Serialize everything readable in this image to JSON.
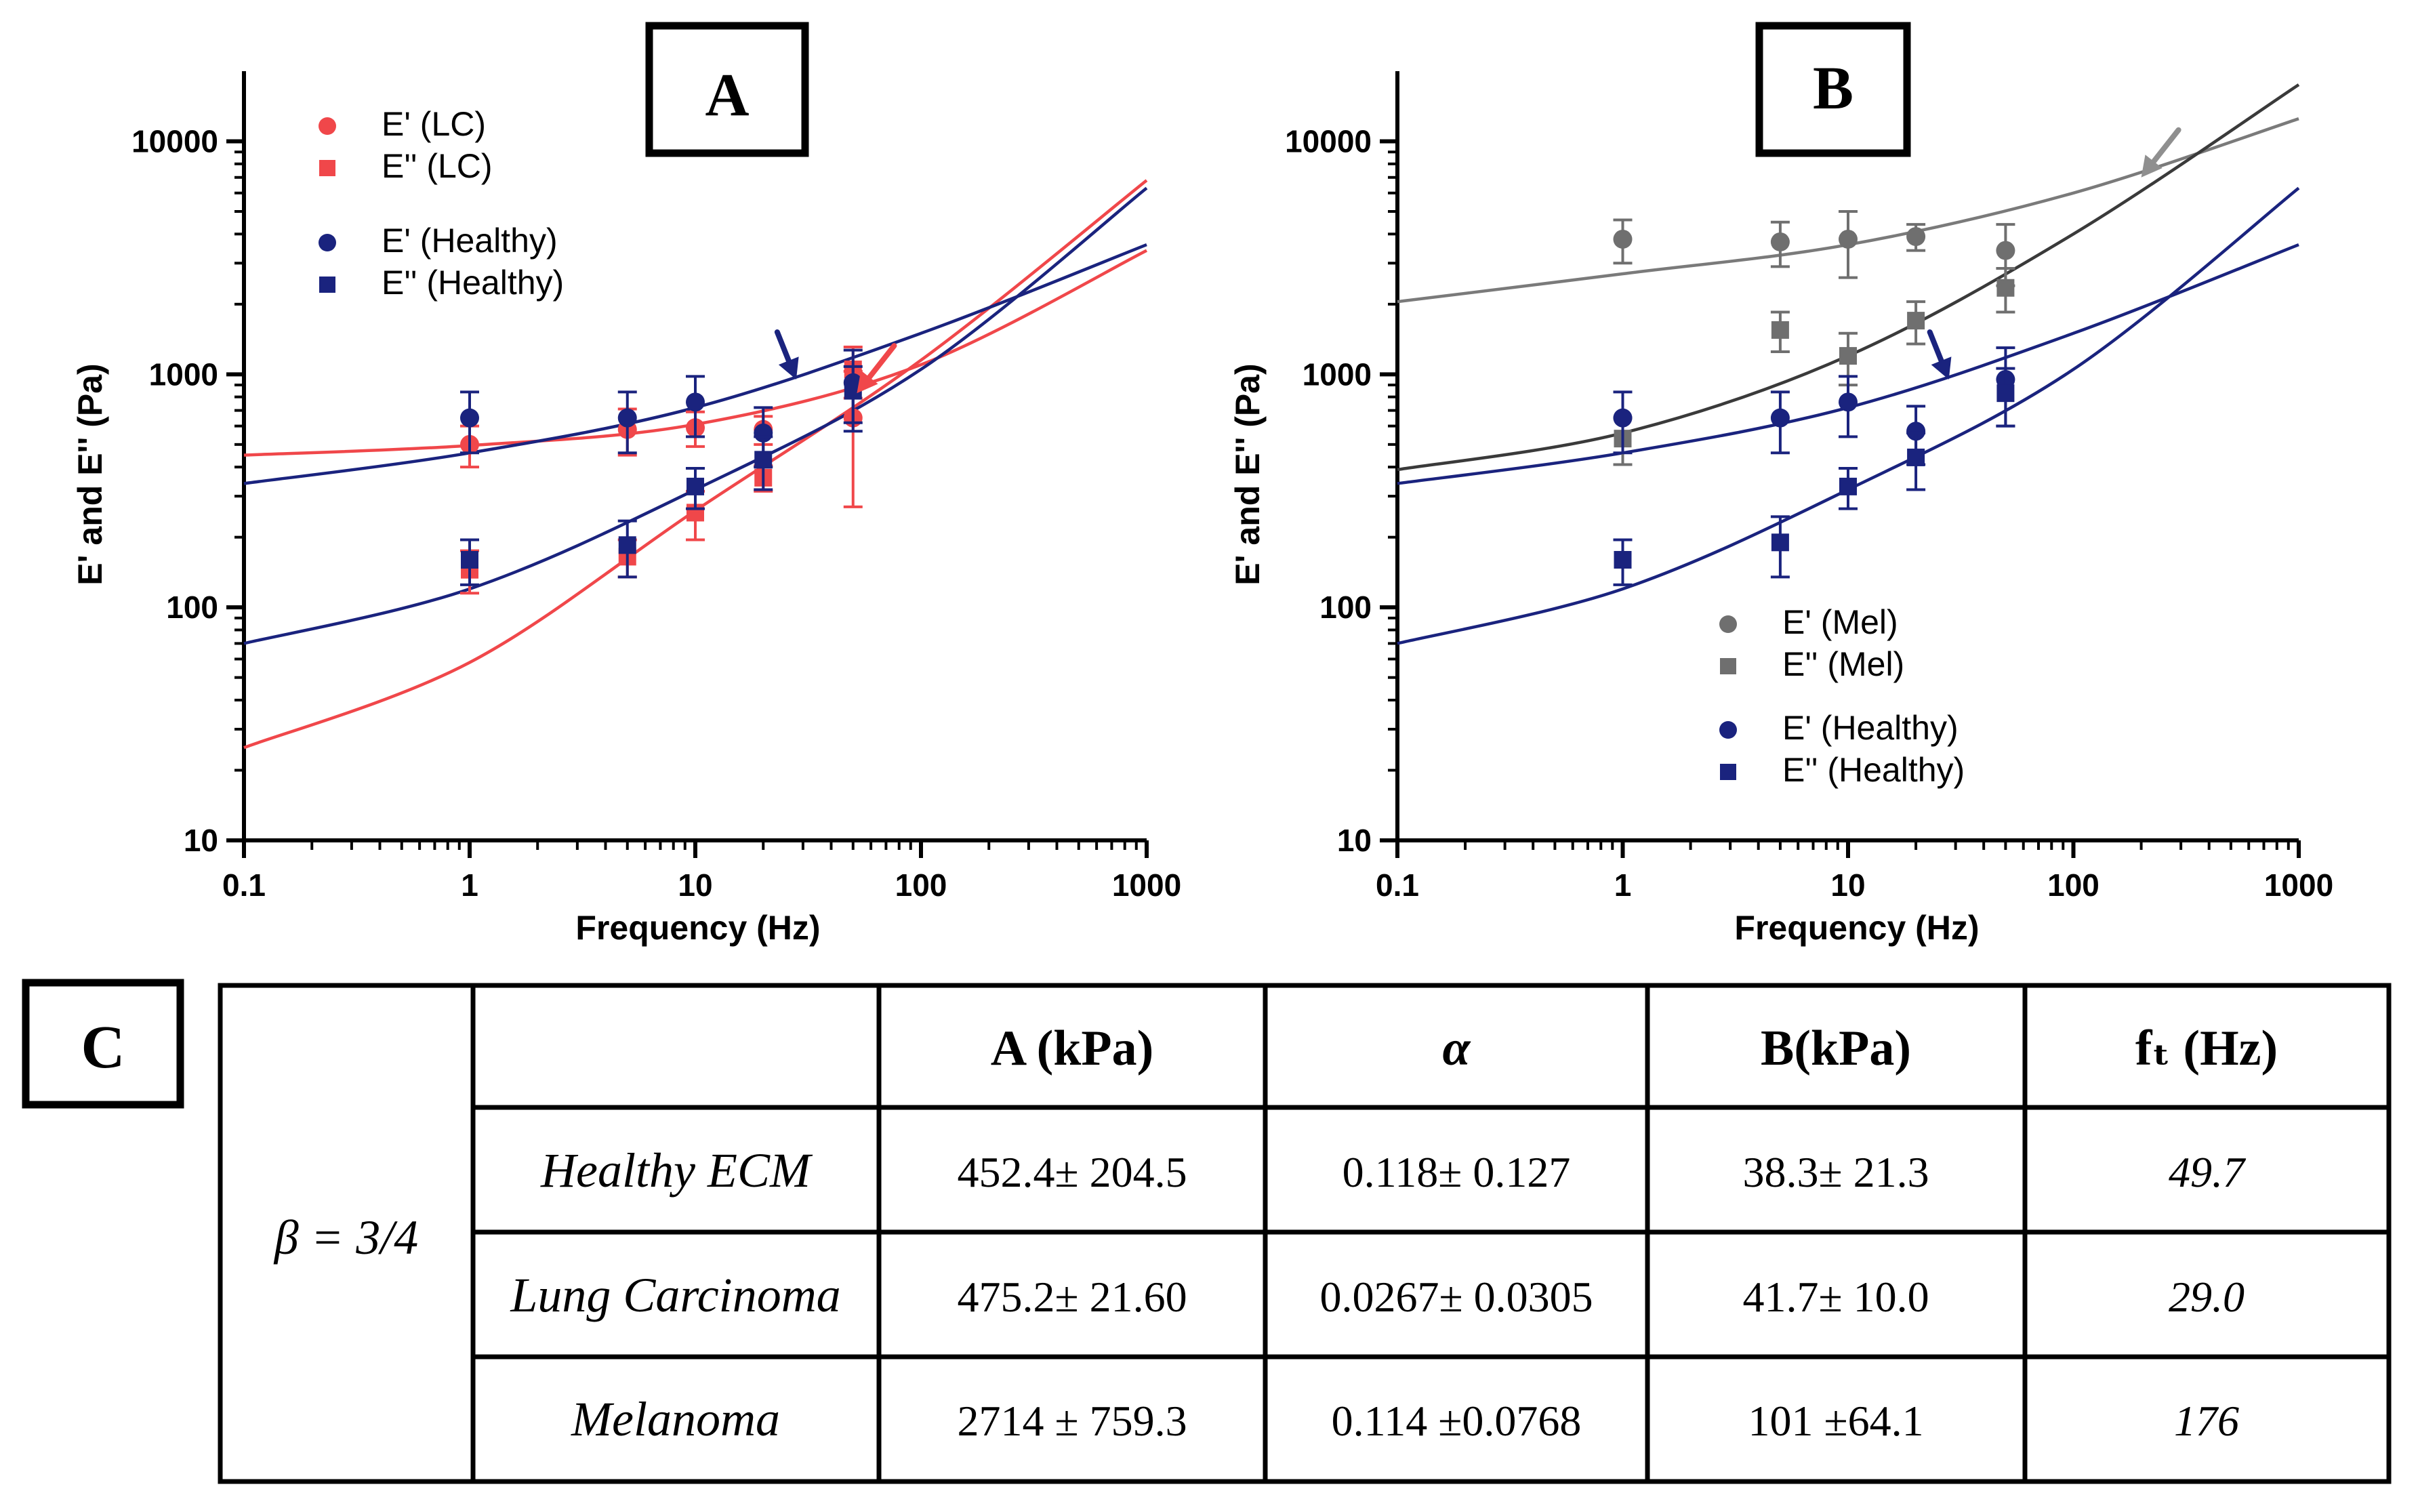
{
  "colors": {
    "lc": "#f0474a",
    "healthy": "#1a237e",
    "mel_fit_g1": "#7a7a7a",
    "mel_fit_g2": "#3a3a3a",
    "mel_marker": "#6f6f6f"
  },
  "chart_data": [
    {
      "panel": "A",
      "type": "scatter",
      "xscale": "log",
      "yscale": "log",
      "xlim": [
        0.1,
        1000
      ],
      "ylim": [
        10,
        20000
      ],
      "xlabel": "Frequency (Hz)",
      "ylabel": "E' and E'' (Pa)",
      "xticks": [
        "0.1",
        "1",
        "10",
        "100",
        "1000"
      ],
      "yticks": [
        "10",
        "100",
        "1000",
        "10000"
      ],
      "legend_position": "top-left",
      "series": [
        {
          "name": "E' (LC)",
          "marker": "circle",
          "color": "#f0474a",
          "x": [
            1,
            5,
            10,
            20,
            50
          ],
          "y": [
            500,
            580,
            590,
            580,
            650
          ],
          "err": [
            100,
            130,
            100,
            80,
            380
          ]
        },
        {
          "name": "E'' (LC)",
          "marker": "square",
          "color": "#f0474a",
          "x": [
            1,
            5,
            10,
            20,
            50
          ],
          "y": [
            145,
            165,
            255,
            360,
            1050
          ],
          "err": [
            30,
            30,
            60,
            45,
            260
          ]
        },
        {
          "name": "E' (Healthy)",
          "marker": "circle",
          "color": "#1a237e",
          "x": [
            1,
            5,
            10,
            20,
            50
          ],
          "y": [
            650,
            650,
            760,
            560,
            920
          ],
          "err": [
            190,
            190,
            220,
            160,
            350
          ]
        },
        {
          "name": "E'' (Healthy)",
          "marker": "square",
          "color": "#1a237e",
          "x": [
            1,
            5,
            10,
            20,
            50
          ],
          "y": [
            160,
            185,
            330,
            430,
            850
          ],
          "err": [
            35,
            50,
            65,
            110,
            230
          ]
        }
      ],
      "fits": [
        {
          "color": "#f0474a",
          "x": [
            0.1,
            1,
            10,
            100,
            1000
          ],
          "y": [
            450,
            495,
            610,
            1100,
            3400
          ]
        },
        {
          "color": "#f0474a",
          "x": [
            0.1,
            1,
            10,
            100,
            1000
          ],
          "y": [
            25,
            58,
            260,
            1150,
            6800
          ]
        },
        {
          "color": "#1a237e",
          "x": [
            0.1,
            1,
            10,
            100,
            1000
          ],
          "y": [
            340,
            460,
            720,
            1500,
            3600
          ]
        },
        {
          "color": "#1a237e",
          "x": [
            0.1,
            1,
            10,
            100,
            1000
          ],
          "y": [
            70,
            120,
            320,
            1050,
            6300
          ]
        }
      ],
      "arrows": [
        {
          "color": "#1a237e",
          "points_to": [
            28,
            950
          ]
        },
        {
          "color": "#f0474a",
          "points_to": [
            52,
            830
          ]
        }
      ]
    },
    {
      "panel": "B",
      "type": "scatter",
      "xscale": "log",
      "yscale": "log",
      "xlim": [
        0.1,
        1000
      ],
      "ylim": [
        10,
        20000
      ],
      "xlabel": "Frequency (Hz)",
      "ylabel": "E' and E'' (Pa)",
      "xticks": [
        "0.1",
        "1",
        "10",
        "100",
        "1000"
      ],
      "yticks": [
        "10",
        "100",
        "1000",
        "10000"
      ],
      "legend_position": "bottom-center",
      "series": [
        {
          "name": "E' (Mel)",
          "marker": "circle",
          "color": "#6f6f6f",
          "x": [
            1,
            5,
            10,
            20,
            50
          ],
          "y": [
            3800,
            3700,
            3800,
            3900,
            3400
          ],
          "err": [
            800,
            800,
            1200,
            500,
            1000
          ]
        },
        {
          "name": "E'' (Mel)",
          "marker": "square",
          "color": "#6f6f6f",
          "x": [
            1,
            5,
            10,
            20,
            50
          ],
          "y": [
            530,
            1550,
            1200,
            1700,
            2350
          ],
          "err": [
            120,
            300,
            300,
            350,
            500
          ]
        },
        {
          "name": "E' (Healthy)",
          "marker": "circle",
          "color": "#1a237e",
          "x": [
            1,
            5,
            10,
            20,
            50
          ],
          "y": [
            650,
            650,
            760,
            570,
            950
          ],
          "err": [
            190,
            190,
            220,
            160,
            350
          ]
        },
        {
          "name": "E'' (Healthy)",
          "marker": "square",
          "color": "#1a237e",
          "x": [
            1,
            5,
            10,
            20,
            50
          ],
          "y": [
            160,
            190,
            330,
            440,
            830
          ],
          "err": [
            35,
            55,
            65,
            120,
            230
          ]
        }
      ],
      "fits": [
        {
          "color": "#7a7a7a",
          "x": [
            0.1,
            1,
            10,
            100,
            1000
          ],
          "y": [
            2050,
            2700,
            3600,
            6000,
            12500
          ]
        },
        {
          "color": "#3a3a3a",
          "x": [
            0.1,
            1,
            10,
            100,
            1000
          ],
          "y": [
            390,
            560,
            1200,
            4000,
            17500
          ]
        },
        {
          "color": "#1a237e",
          "x": [
            0.1,
            1,
            10,
            100,
            1000
          ],
          "y": [
            340,
            460,
            720,
            1500,
            3600
          ]
        },
        {
          "color": "#1a237e",
          "x": [
            0.1,
            1,
            10,
            100,
            1000
          ],
          "y": [
            70,
            120,
            320,
            1050,
            6300
          ]
        }
      ],
      "arrows": [
        {
          "color": "#1a237e",
          "points_to": [
            28,
            950
          ]
        },
        {
          "color": "#8f8f8f",
          "points_to": [
            200,
            7000
          ]
        }
      ]
    },
    {
      "panel": "C",
      "type": "table",
      "row_group_label": "β = 3/4",
      "headers": [
        "",
        "A (kPa)",
        "α",
        "B(kPa)",
        "fₜ (Hz)"
      ],
      "rows": [
        [
          "Healthy ECM",
          "452.4± 204.5",
          "0.118± 0.127",
          "38.3± 21.3",
          "49.7"
        ],
        [
          "Lung Carcinoma",
          "475.2± 21.60",
          "0.0267± 0.0305",
          "41.7± 10.0",
          "29.0"
        ],
        [
          "Melanoma",
          "2714 ± 759.3",
          "0.114 ±0.0768",
          "101 ±64.1",
          "176"
        ]
      ]
    }
  ]
}
